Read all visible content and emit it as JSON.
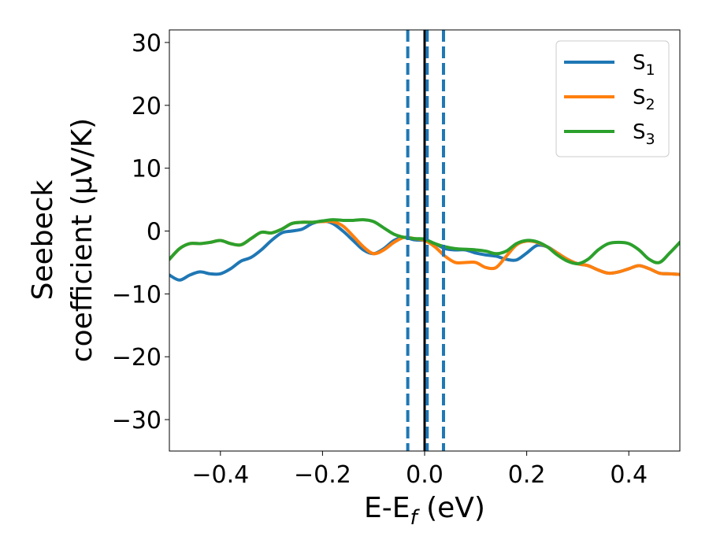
{
  "chart_data": {
    "type": "line",
    "xlabel": "E-E",
    "xlabel_sub": "f",
    "xlabel_unit": " (eV)",
    "ylabel_line1": "Seebeck",
    "ylabel_line2": "coefficient  (μV/K)",
    "xlim": [
      -0.5,
      0.5
    ],
    "ylim": [
      -35,
      32
    ],
    "xticks": [
      -0.4,
      -0.2,
      0.0,
      0.2,
      0.4
    ],
    "xtick_labels": [
      "−0.4",
      "−0.2",
      "0.0",
      "0.2",
      "0.4"
    ],
    "yticks": [
      30,
      20,
      10,
      0,
      -10,
      -20,
      -30
    ],
    "ytick_labels": [
      "30",
      "20",
      "10",
      "0",
      "−10",
      "−20",
      "−30"
    ],
    "grid": false,
    "legend_position": "top-right",
    "vlines": [
      {
        "x": -0.033,
        "style": "dashed",
        "color": "#1f77b4"
      },
      {
        "x": 0.0,
        "style": "solid",
        "color": "#000000"
      },
      {
        "x": 0.005,
        "style": "dashed",
        "color": "#1f77b4"
      },
      {
        "x": 0.037,
        "style": "dashed",
        "color": "#1f77b4"
      }
    ],
    "series": [
      {
        "name": "S",
        "sub": "1",
        "color": "#1f77b4",
        "x": [
          -0.5,
          -0.48,
          -0.46,
          -0.44,
          -0.42,
          -0.4,
          -0.38,
          -0.36,
          -0.34,
          -0.32,
          -0.3,
          -0.28,
          -0.26,
          -0.24,
          -0.22,
          -0.2,
          -0.18,
          -0.16,
          -0.14,
          -0.12,
          -0.1,
          -0.08,
          -0.06,
          -0.04,
          -0.02,
          0.0,
          0.02,
          0.04,
          0.06,
          0.08,
          0.1,
          0.12,
          0.14,
          0.16,
          0.18,
          0.2,
          0.22,
          0.24,
          0.26,
          0.28,
          0.3,
          0.32,
          0.34,
          0.36,
          0.38,
          0.4,
          0.42,
          0.44,
          0.46,
          0.48,
          0.5
        ],
        "y": [
          -7.0,
          -7.8,
          -7.0,
          -6.5,
          -6.8,
          -6.8,
          -6.0,
          -4.8,
          -4.2,
          -3.0,
          -1.5,
          -0.3,
          0.0,
          0.3,
          1.2,
          1.6,
          1.2,
          0.0,
          -1.5,
          -3.0,
          -3.6,
          -2.8,
          -1.5,
          -1.0,
          -1.4,
          -1.5,
          -2.0,
          -2.8,
          -3.0,
          -3.0,
          -3.5,
          -3.8,
          -4.0,
          -4.5,
          -4.6,
          -3.5,
          -2.3,
          -2.5,
          -3.5,
          -4.5,
          -5.2,
          -5.5,
          -6.2,
          -6.7,
          -6.5,
          -6.0,
          -5.5,
          -6.0,
          -6.7,
          -6.8,
          -6.9
        ]
      },
      {
        "name": "S",
        "sub": "2",
        "color": "#ff7f0e",
        "x": [
          -0.5,
          -0.48,
          -0.46,
          -0.44,
          -0.42,
          -0.4,
          -0.38,
          -0.36,
          -0.34,
          -0.32,
          -0.3,
          -0.28,
          -0.26,
          -0.24,
          -0.22,
          -0.2,
          -0.18,
          -0.16,
          -0.14,
          -0.12,
          -0.1,
          -0.08,
          -0.06,
          -0.04,
          -0.02,
          0.0,
          0.02,
          0.04,
          0.06,
          0.08,
          0.1,
          0.12,
          0.14,
          0.16,
          0.18,
          0.2,
          0.22,
          0.24,
          0.26,
          0.28,
          0.3,
          0.32,
          0.34,
          0.36,
          0.38,
          0.4,
          0.42,
          0.44,
          0.46,
          0.48,
          0.5
        ],
        "y": [
          -4.5,
          -2.8,
          -2.0,
          -2.0,
          -1.8,
          -1.5,
          -2.0,
          -2.2,
          -1.2,
          -0.2,
          -0.3,
          0.3,
          1.2,
          1.4,
          1.4,
          1.5,
          1.5,
          0.8,
          -0.8,
          -2.5,
          -3.6,
          -3.0,
          -1.8,
          -1.0,
          -1.2,
          -1.5,
          -2.5,
          -4.0,
          -5.0,
          -5.0,
          -5.0,
          -5.8,
          -5.8,
          -4.0,
          -2.2,
          -1.6,
          -1.8,
          -2.5,
          -3.5,
          -4.5,
          -5.2,
          -5.5,
          -6.2,
          -6.7,
          -6.5,
          -6.0,
          -5.5,
          -6.0,
          -6.7,
          -6.8,
          -6.9
        ]
      },
      {
        "name": "S",
        "sub": "3",
        "color": "#2ca02c",
        "x": [
          -0.5,
          -0.48,
          -0.46,
          -0.44,
          -0.42,
          -0.4,
          -0.38,
          -0.36,
          -0.34,
          -0.32,
          -0.3,
          -0.28,
          -0.26,
          -0.24,
          -0.22,
          -0.2,
          -0.18,
          -0.16,
          -0.14,
          -0.12,
          -0.1,
          -0.08,
          -0.06,
          -0.04,
          -0.02,
          0.0,
          0.02,
          0.04,
          0.06,
          0.08,
          0.1,
          0.12,
          0.14,
          0.16,
          0.18,
          0.2,
          0.22,
          0.24,
          0.26,
          0.28,
          0.3,
          0.32,
          0.34,
          0.36,
          0.38,
          0.4,
          0.42,
          0.44,
          0.46,
          0.48,
          0.5
        ],
        "y": [
          -4.5,
          -2.8,
          -2.0,
          -2.0,
          -1.8,
          -1.5,
          -2.0,
          -2.2,
          -1.2,
          -0.2,
          -0.3,
          0.3,
          1.2,
          1.4,
          1.4,
          1.6,
          1.8,
          1.7,
          1.7,
          1.8,
          1.5,
          0.5,
          -0.5,
          -1.0,
          -1.2,
          -1.3,
          -2.0,
          -2.5,
          -2.8,
          -2.9,
          -3.0,
          -3.2,
          -3.6,
          -3.2,
          -2.0,
          -1.5,
          -1.7,
          -2.5,
          -3.8,
          -4.8,
          -5.2,
          -4.5,
          -3.0,
          -2.0,
          -1.8,
          -2.0,
          -3.0,
          -4.5,
          -5.0,
          -3.5,
          -1.8
        ]
      }
    ]
  }
}
